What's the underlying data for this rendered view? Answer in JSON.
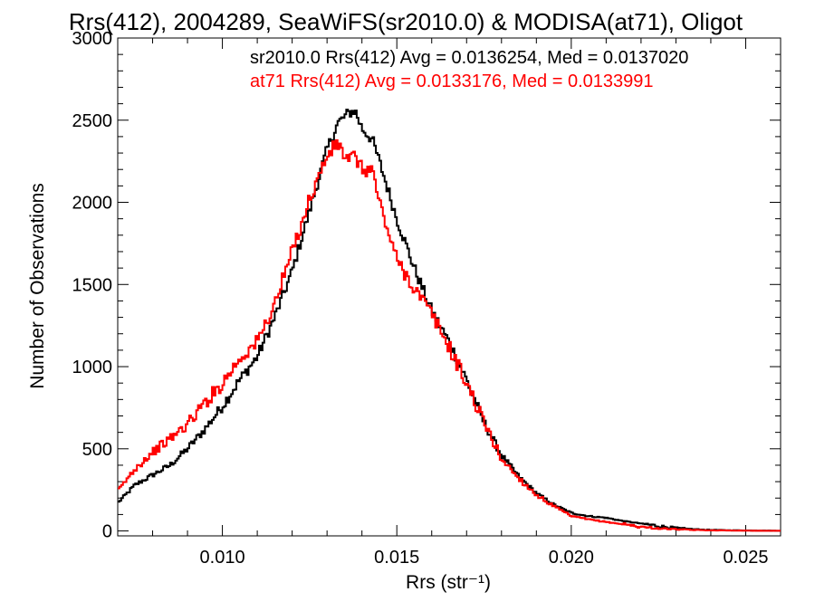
{
  "chart_data": {
    "type": "line",
    "title": "Rrs(412), 2004289, SeaWiFS(sr2010.0) & MODISA(at71), Oligot",
    "xlabel": "Rrs (str⁻¹)",
    "ylabel": "Number of Observations",
    "xlim": [
      0.007,
      0.026
    ],
    "ylim": [
      -30,
      3000
    ],
    "x_ticks": [
      0.01,
      0.015,
      0.02,
      0.025
    ],
    "x_tick_labels": [
      "0.010",
      "0.015",
      "0.020",
      "0.025"
    ],
    "y_ticks": [
      0,
      500,
      1000,
      1500,
      2000,
      2500,
      3000
    ],
    "y_tick_labels": [
      "0",
      "500",
      "1000",
      "1500",
      "2000",
      "2500",
      "3000"
    ],
    "grid": false,
    "legend_position": "top-right",
    "series": [
      {
        "name": "sr2010.0 Rrs(412) Avg = 0.0136254, Med = 0.0137020",
        "color": "#000000",
        "x": [
          0.007,
          0.0075,
          0.008,
          0.0085,
          0.009,
          0.0095,
          0.01,
          0.0105,
          0.011,
          0.0115,
          0.012,
          0.0125,
          0.013,
          0.0133,
          0.0136,
          0.0138,
          0.014,
          0.0143,
          0.0145,
          0.015,
          0.0155,
          0.016,
          0.0165,
          0.017,
          0.0175,
          0.018,
          0.0185,
          0.019,
          0.0195,
          0.02,
          0.0205,
          0.021,
          0.0215,
          0.022,
          0.0225,
          0.023,
          0.0235,
          0.024,
          0.0245,
          0.025,
          0.0255,
          0.026
        ],
        "y": [
          170,
          280,
          340,
          400,
          500,
          620,
          760,
          920,
          1060,
          1300,
          1580,
          1950,
          2320,
          2480,
          2540,
          2560,
          2450,
          2380,
          2250,
          1900,
          1600,
          1340,
          1150,
          920,
          660,
          460,
          330,
          230,
          160,
          110,
          90,
          80,
          60,
          45,
          30,
          18,
          10,
          6,
          4,
          3,
          2,
          1
        ]
      },
      {
        "name": "at71 Rrs(412) Avg = 0.0133176, Med = 0.0133991",
        "color": "#ff0000",
        "x": [
          0.007,
          0.0075,
          0.008,
          0.0085,
          0.009,
          0.0095,
          0.01,
          0.0105,
          0.011,
          0.0115,
          0.012,
          0.0125,
          0.013,
          0.0133,
          0.0136,
          0.0138,
          0.014,
          0.0143,
          0.0145,
          0.015,
          0.0155,
          0.016,
          0.0165,
          0.017,
          0.0175,
          0.018,
          0.0185,
          0.019,
          0.0195,
          0.02,
          0.0205,
          0.021,
          0.0215,
          0.022,
          0.0225,
          0.023,
          0.0235,
          0.024,
          0.0245,
          0.025,
          0.0255,
          0.026
        ],
        "y": [
          240,
          380,
          480,
          560,
          650,
          780,
          900,
          1050,
          1150,
          1380,
          1700,
          2020,
          2280,
          2360,
          2250,
          2280,
          2200,
          2200,
          2000,
          1650,
          1480,
          1320,
          1120,
          900,
          660,
          440,
          320,
          220,
          150,
          90,
          70,
          55,
          40,
          25,
          15,
          10,
          6,
          4,
          3,
          2,
          1,
          1
        ]
      }
    ]
  }
}
